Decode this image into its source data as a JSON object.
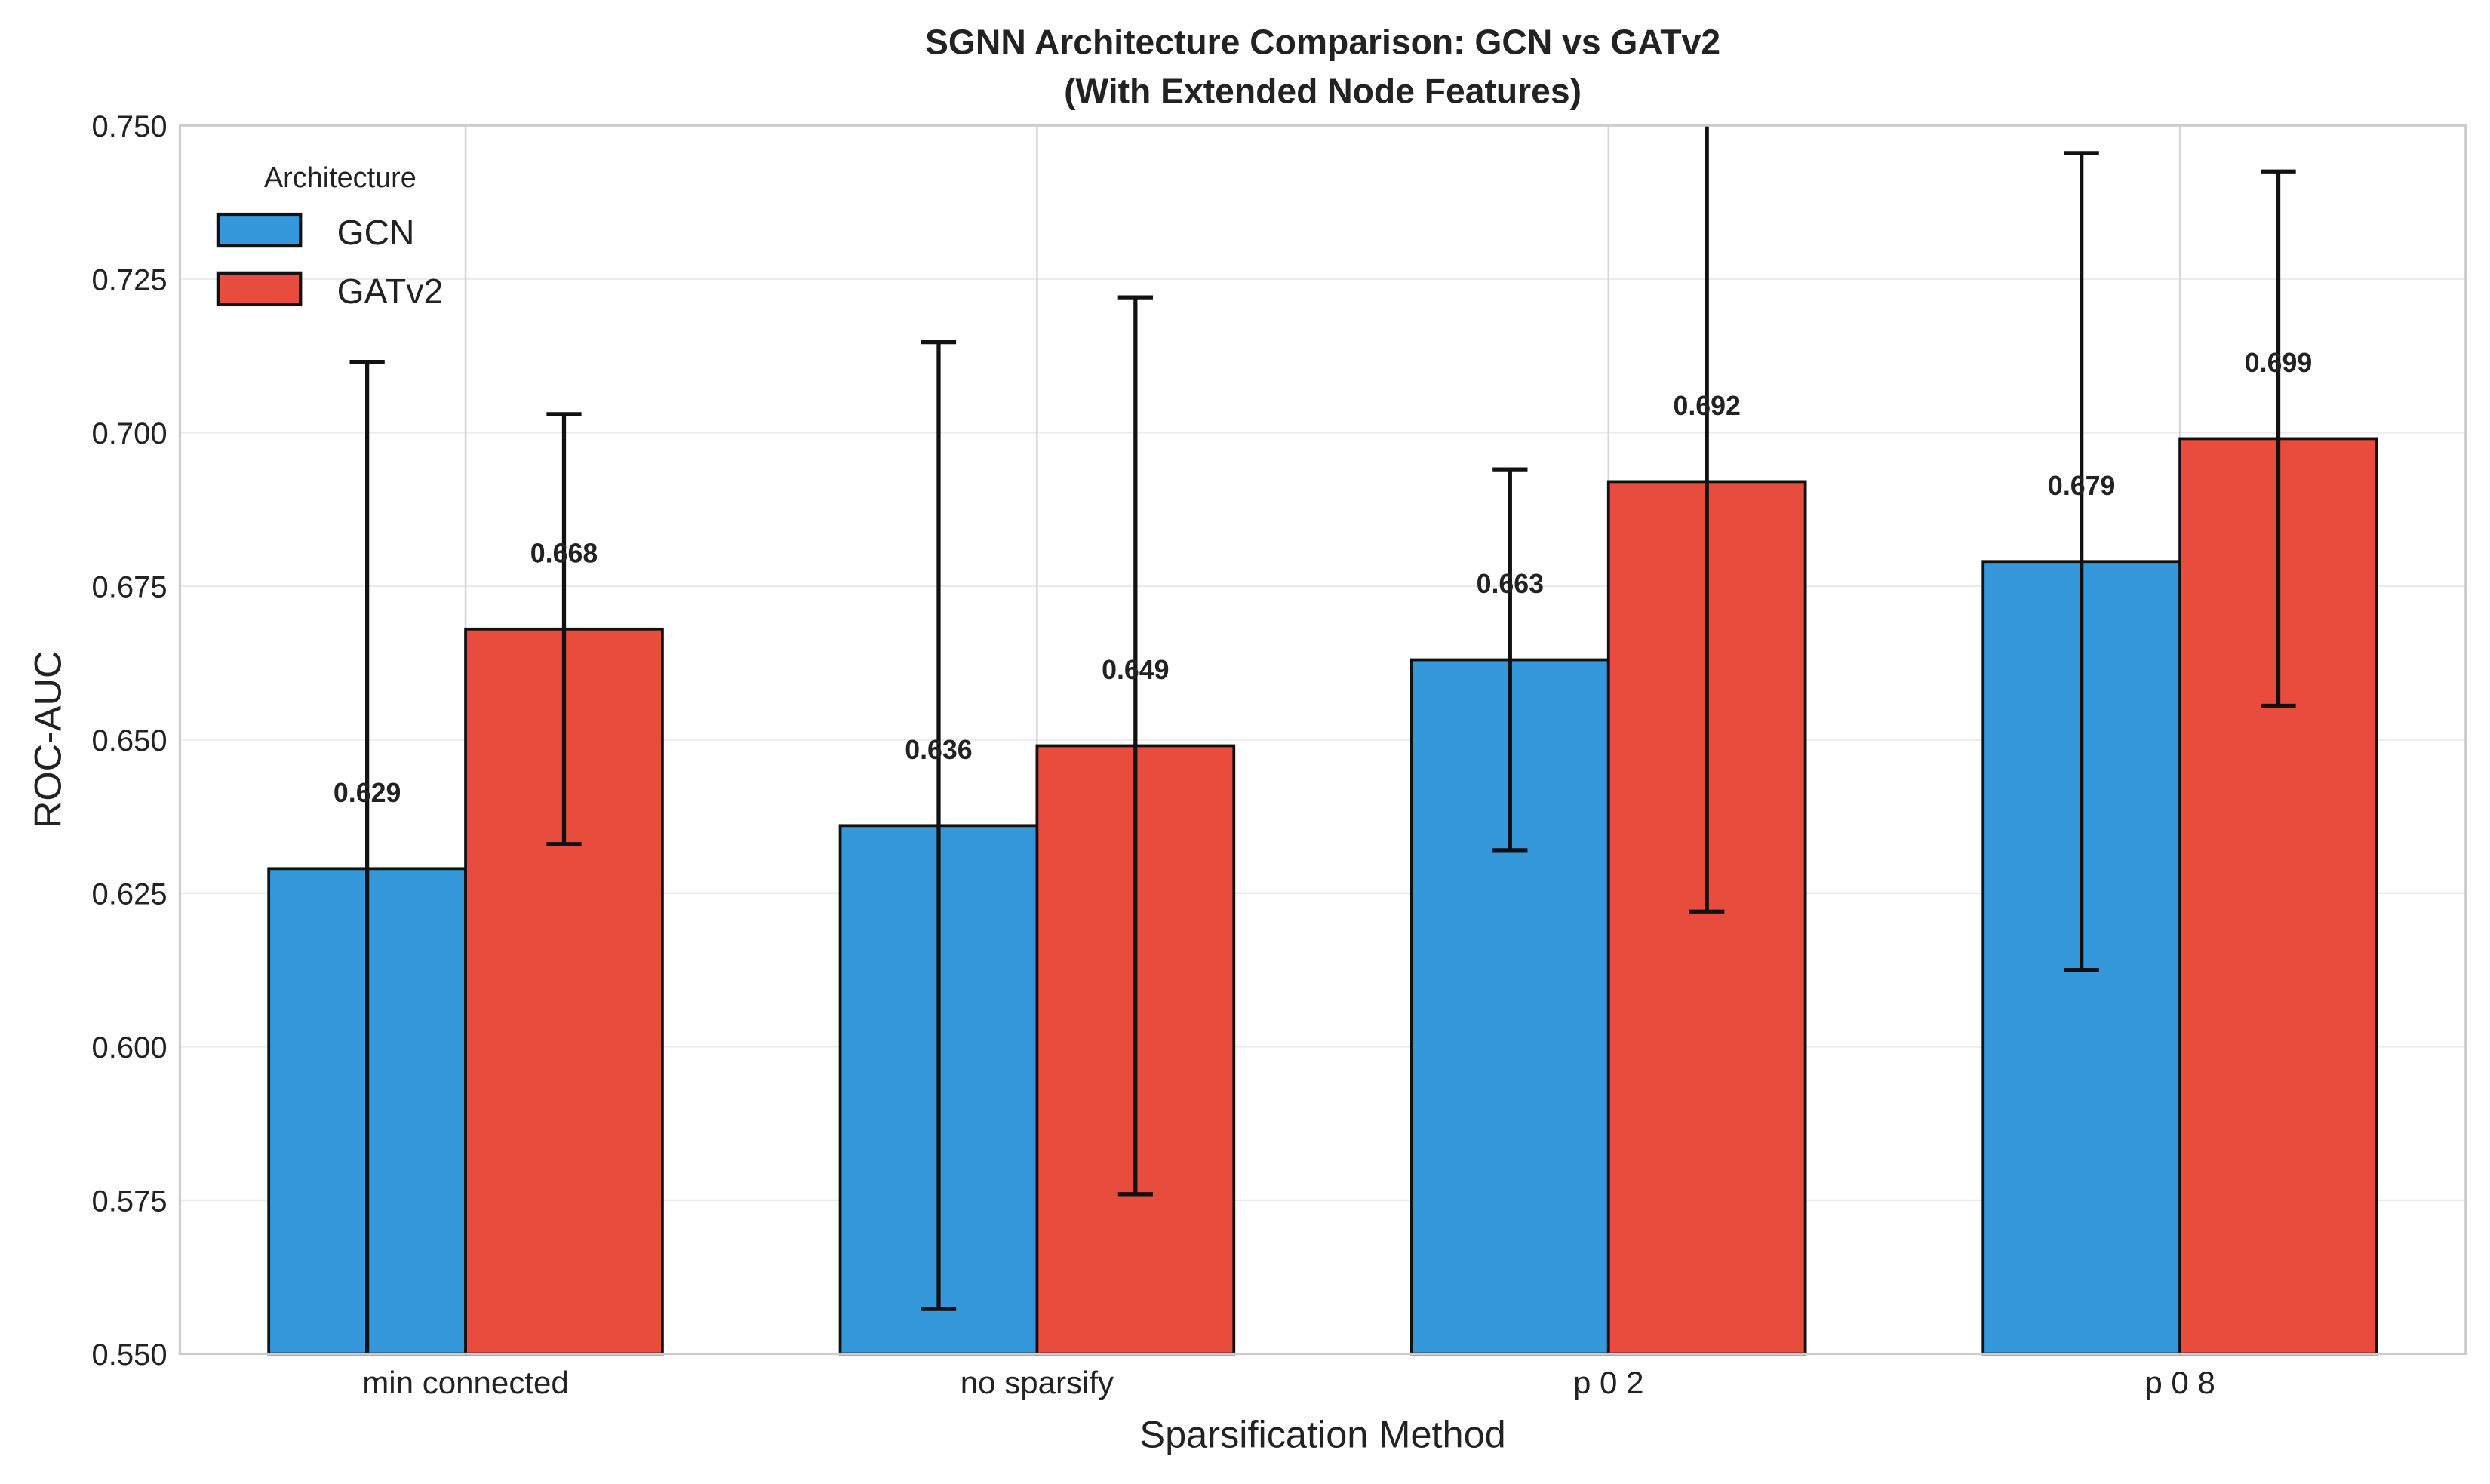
{
  "chart_data": {
    "type": "bar",
    "title": "SGNN Architecture Comparison: GCN vs GATv2",
    "subtitle": "(With Extended Node Features)",
    "xlabel": "Sparsification Method",
    "ylabel": "ROC-AUC",
    "ylim": [
      0.55,
      0.75
    ],
    "yticks": [
      "0.550",
      "0.575",
      "0.600",
      "0.625",
      "0.650",
      "0.675",
      "0.700",
      "0.725",
      "0.750"
    ],
    "grid": true,
    "categories": [
      "min connected",
      "no sparsify",
      "p 0 2",
      "p 0 8"
    ],
    "legend": {
      "title": "Architecture",
      "placement": "top-left"
    },
    "series": [
      {
        "name": "GCN",
        "color": "#3498db",
        "values": [
          0.629,
          0.636,
          0.663,
          0.679
        ],
        "errors": [
          0.0825,
          0.0787,
          0.031,
          0.0665
        ],
        "labels": [
          "0.629",
          "0.636",
          "0.663",
          "0.679"
        ]
      },
      {
        "name": "GATv2",
        "color": "#e74c3c",
        "values": [
          0.668,
          0.649,
          0.692,
          0.699
        ],
        "errors": [
          0.035,
          0.073,
          0.07,
          0.0435
        ],
        "labels": [
          "0.668",
          "0.649",
          "0.692",
          "0.699"
        ]
      }
    ]
  }
}
